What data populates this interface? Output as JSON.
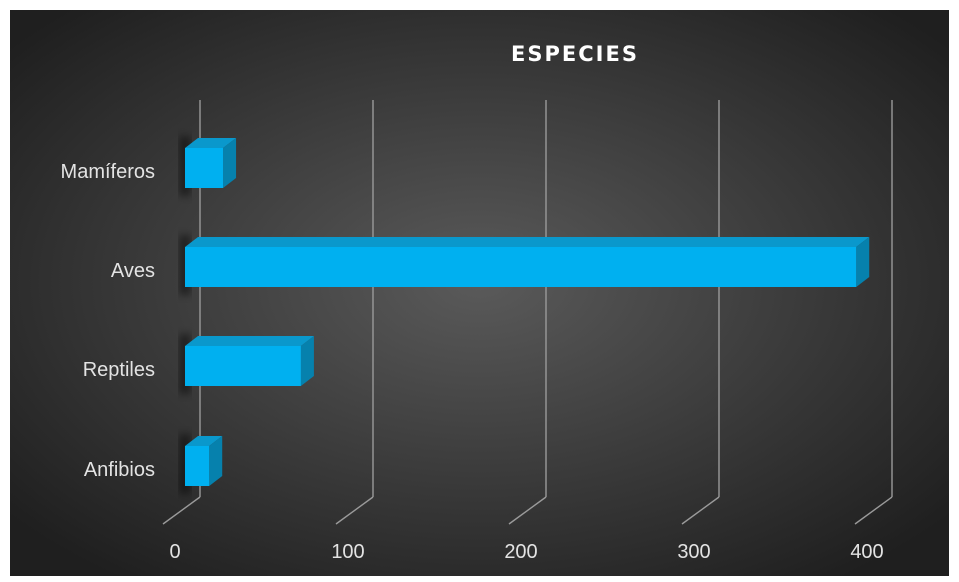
{
  "chart_data": {
    "type": "bar",
    "orientation": "horizontal",
    "title": "ESPECIES",
    "categories": [
      "Mamíferos",
      "Aves",
      "Reptiles",
      "Anfibios"
    ],
    "values": [
      22,
      388,
      67,
      14
    ],
    "x_ticks": [
      "0",
      "100",
      "200",
      "300",
      "400"
    ],
    "xlim": [
      0,
      400
    ],
    "grid": true,
    "legend": "none",
    "colors": {
      "bar_front": "#00b0f0",
      "bar_top": "#0a98cc",
      "bar_side": "#0681ad",
      "background_center": "#5a5a5a",
      "background_edge": "#1f1f1f",
      "grid": "#9a9a9a",
      "text": "#e3e3e3",
      "title": "#ffffff"
    }
  }
}
